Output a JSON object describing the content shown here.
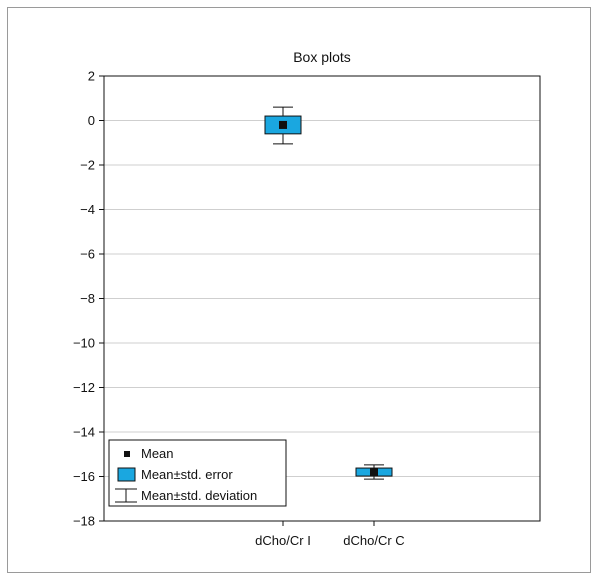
{
  "chart_data": {
    "type": "box",
    "title": "Box plots",
    "xlabel": "",
    "ylabel": "",
    "ylim": [
      -18,
      2
    ],
    "yticks": [
      2,
      0,
      -2,
      -4,
      -6,
      -8,
      -10,
      -12,
      -14,
      -16,
      -18
    ],
    "ytick_labels": [
      "2",
      "0",
      "−2",
      "−4",
      "−6",
      "−8",
      "−10",
      "−12",
      "−14",
      "−16",
      "−18"
    ],
    "grid": true,
    "legend_position": "bottom-left",
    "colors": {
      "box": "#1aa7e0",
      "mean": "#111111",
      "whisker": "#111111",
      "grid": "#cfcfcf"
    },
    "categories": [
      "dCho/Cr I",
      "dCho/Cr C"
    ],
    "series": [
      {
        "mean": -0.2,
        "se_low": -0.6,
        "se_high": 0.2,
        "sd_low": -1.05,
        "sd_high": 0.6
      },
      {
        "mean": -15.8,
        "se_low": -15.98,
        "se_high": -15.62,
        "sd_low": -16.12,
        "sd_high": -15.48
      }
    ],
    "legend": [
      "Mean",
      "Mean±std. error",
      "Mean±std. deviation"
    ]
  }
}
